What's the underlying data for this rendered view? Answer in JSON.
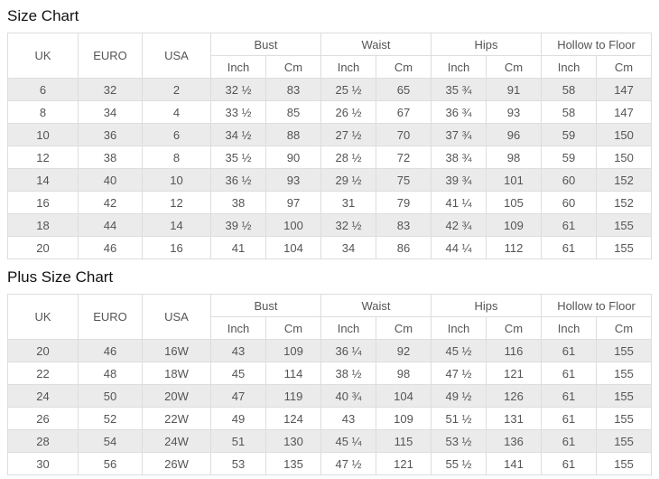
{
  "colors": {
    "row_shaded": "#ebebeb",
    "border": "#dddddd",
    "cell_text": "#555555",
    "title_text": "#111111",
    "background": "#ffffff"
  },
  "tables": [
    {
      "title": "Size Chart",
      "simple_headers": [
        "UK",
        "EURO",
        "USA"
      ],
      "group_headers": [
        {
          "label": "Bust",
          "sub": [
            "Inch",
            "Cm"
          ]
        },
        {
          "label": "Waist",
          "sub": [
            "Inch",
            "Cm"
          ]
        },
        {
          "label": "Hips",
          "sub": [
            "Inch",
            "Cm"
          ]
        },
        {
          "label": "Hollow to Floor",
          "sub": [
            "Inch",
            "Cm"
          ]
        }
      ],
      "rows": [
        [
          "6",
          "32",
          "2",
          "32 ½",
          "83",
          "25 ½",
          "65",
          "35 ¾",
          "91",
          "58",
          "147"
        ],
        [
          "8",
          "34",
          "4",
          "33 ½",
          "85",
          "26 ½",
          "67",
          "36 ¾",
          "93",
          "58",
          "147"
        ],
        [
          "10",
          "36",
          "6",
          "34 ½",
          "88",
          "27 ½",
          "70",
          "37 ¾",
          "96",
          "59",
          "150"
        ],
        [
          "12",
          "38",
          "8",
          "35 ½",
          "90",
          "28 ½",
          "72",
          "38 ¾",
          "98",
          "59",
          "150"
        ],
        [
          "14",
          "40",
          "10",
          "36 ½",
          "93",
          "29 ½",
          "75",
          "39 ¾",
          "101",
          "60",
          "152"
        ],
        [
          "16",
          "42",
          "12",
          "38",
          "97",
          "31",
          "79",
          "41 ¼",
          "105",
          "60",
          "152"
        ],
        [
          "18",
          "44",
          "14",
          "39 ½",
          "100",
          "32 ½",
          "83",
          "42 ¾",
          "109",
          "61",
          "155"
        ],
        [
          "20",
          "46",
          "16",
          "41",
          "104",
          "34",
          "86",
          "44 ¼",
          "112",
          "61",
          "155"
        ]
      ]
    },
    {
      "title": "Plus Size Chart",
      "simple_headers": [
        "UK",
        "EURO",
        "USA"
      ],
      "group_headers": [
        {
          "label": "Bust",
          "sub": [
            "Inch",
            "Cm"
          ]
        },
        {
          "label": "Waist",
          "sub": [
            "Inch",
            "Cm"
          ]
        },
        {
          "label": "Hips",
          "sub": [
            "Inch",
            "Cm"
          ]
        },
        {
          "label": "Hollow to Floor",
          "sub": [
            "Inch",
            "Cm"
          ]
        }
      ],
      "rows": [
        [
          "20",
          "46",
          "16W",
          "43",
          "109",
          "36 ¼",
          "92",
          "45 ½",
          "116",
          "61",
          "155"
        ],
        [
          "22",
          "48",
          "18W",
          "45",
          "114",
          "38 ½",
          "98",
          "47 ½",
          "121",
          "61",
          "155"
        ],
        [
          "24",
          "50",
          "20W",
          "47",
          "119",
          "40 ¾",
          "104",
          "49 ½",
          "126",
          "61",
          "155"
        ],
        [
          "26",
          "52",
          "22W",
          "49",
          "124",
          "43",
          "109",
          "51 ½",
          "131",
          "61",
          "155"
        ],
        [
          "28",
          "54",
          "24W",
          "51",
          "130",
          "45 ¼",
          "115",
          "53 ½",
          "136",
          "61",
          "155"
        ],
        [
          "30",
          "56",
          "26W",
          "53",
          "135",
          "47 ½",
          "121",
          "55 ½",
          "141",
          "61",
          "155"
        ]
      ]
    }
  ]
}
